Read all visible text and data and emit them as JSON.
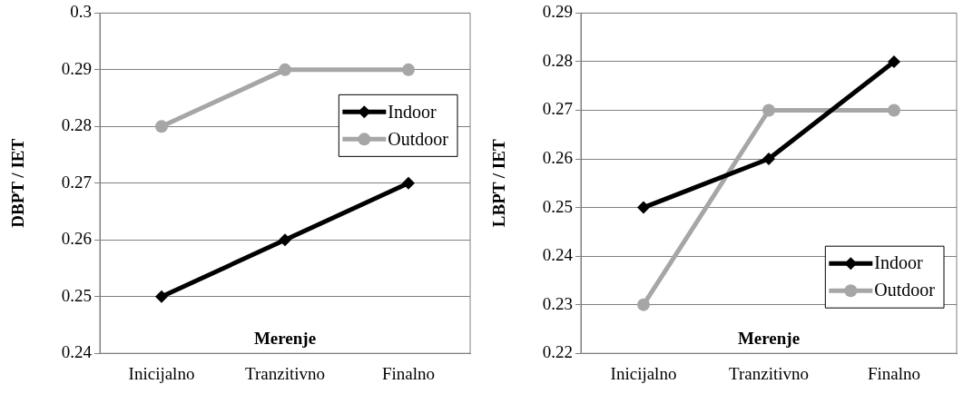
{
  "chart_data": [
    {
      "type": "line",
      "xlabel": "Merenje",
      "ylabel": "DBPT / IET",
      "categories": [
        "Inicijalno",
        "Tranzitivno",
        "Finalno"
      ],
      "ylim": [
        0.24,
        0.3
      ],
      "yticks": [
        0.24,
        0.25,
        0.26,
        0.27,
        0.28,
        0.29,
        0.3
      ],
      "grid": "y",
      "legend": "right",
      "line_style": "solid",
      "series": [
        {
          "name": "Indoor",
          "color": "#000000",
          "marker": "diamond",
          "values": [
            0.25,
            0.26,
            0.27
          ]
        },
        {
          "name": "Outdoor",
          "color": "#a6a6a6",
          "marker": "circle",
          "values": [
            0.28,
            0.29,
            0.29
          ]
        }
      ]
    },
    {
      "type": "line",
      "xlabel": "Merenje",
      "ylabel": "LBPT / IET",
      "categories": [
        "Inicijalno",
        "Tranzitivno",
        "Finalno"
      ],
      "ylim": [
        0.22,
        0.29
      ],
      "yticks": [
        0.22,
        0.23,
        0.24,
        0.25,
        0.26,
        0.27,
        0.28,
        0.29
      ],
      "grid": "y",
      "legend": "bottom right",
      "line_style": "solid",
      "series": [
        {
          "name": "Indoor",
          "color": "#000000",
          "marker": "diamond",
          "values": [
            0.25,
            0.26,
            0.28
          ]
        },
        {
          "name": "Outdoor",
          "color": "#a6a6a6",
          "marker": "circle",
          "values": [
            0.23,
            0.27,
            0.27
          ]
        }
      ]
    }
  ]
}
